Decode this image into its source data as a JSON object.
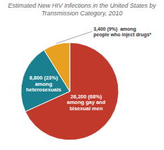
{
  "chart_data": {
    "type": "pie",
    "title": "Estimated New HIV Infections in the United States by Transmission Category, 2010",
    "values": [
      26200,
      8800,
      3400
    ],
    "value_labels": [
      "26,200 (68%)\namong gay and\nbisexual men",
      "8,800 (23%)\namong\nheterosexuals",
      "3,400 (9%)  among\npeople who inject drugs*"
    ],
    "colors": [
      "#c0392b",
      "#1a7f8e",
      "#e8a020"
    ],
    "data_labels": true
  }
}
